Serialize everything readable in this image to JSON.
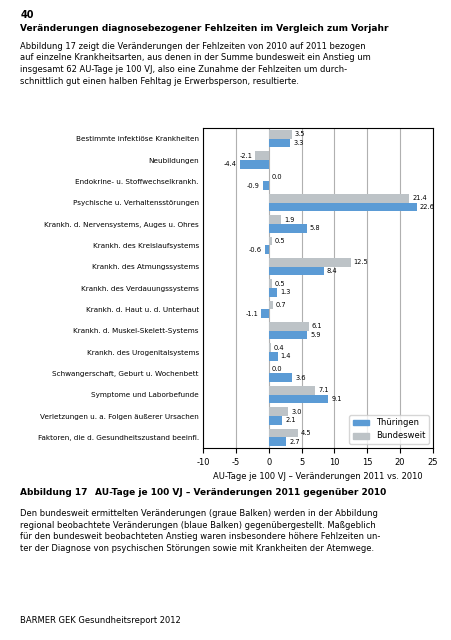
{
  "chart_data": {
    "type": "bar",
    "orientation": "horizontal",
    "title": "AU-Tage je 100 VJ – Veränderungen 2011 gegenüber 2010",
    "annotations": [
      "40",
      "Veränderungen diagnosebezogener Fehlzeiten im Vergleich zum Vorjahr",
      "Abbildung 17 zeigt die Veränderungen der Fehlzeiten von 2010 auf 2011 bezogen\nauf einzelne Krankheitsarten, aus denen in der Summe bundesweit ein Anstieg um\ninsgesamt 62 AU-Tage je 100 VJ, also eine Zunahme der Fehlzeiten um durch-\nschnittlich gut einen halben Fehltag je Erwerbsperson, resultierte.",
      "Abbildung 17",
      "Den bundesweit ermittelten Veränderungen (graue Balken) werden in der Abbildung\nregional beobachtete Veränderungen (blaue Balken) gegenübergestellt. Maßgeblich\nfür den bundesweit beobachteten Anstieg waren insbesondere höhere Fehlzeiten un-\nter der Diagnose von psychischen Störungen sowie mit Krankheiten der Atemwege.",
      "BARMER GEK Gesundheitsreport 2012"
    ],
    "xlabel": "AU-Tage je 100 VJ – Veränderungen 2011 vs. 2010",
    "categories": [
      "Bestimmte infektiöse Krankheiten",
      "Neubildungen",
      "Endokrine- u. Stoffwechselkrankh.",
      "Psychische u. Verhaltensstörungen",
      "Krankh. d. Nervensystems, Auges u. Ohres",
      "Krankh. des Kreislaufsystems",
      "Krankh. des Atmungssystems",
      "Krankh. des Verdauungssystems",
      "Krankh. d. Haut u. d. Unterhaut",
      "Krankh. d. Muskel-Skelett-Systems",
      "Krankh. des Urogenitalsystems",
      "Schwangerschaft, Geburt u. Wochenbett",
      "Symptome und Laborbefunde",
      "Verletzungen u. a. Folgen äußerer Ursachen",
      "Faktoren, die d. Gesundheitszustand beeinfl."
    ],
    "series": [
      {
        "name": "Thüringen",
        "color": "#5b9bd5",
        "values": [
          3.3,
          -4.4,
          -0.9,
          22.6,
          5.8,
          -0.6,
          8.4,
          1.3,
          -1.1,
          5.9,
          1.4,
          3.6,
          9.1,
          2.1,
          2.7
        ]
      },
      {
        "name": "Bundesweit",
        "color": "#bdc3c7",
        "values": [
          3.5,
          -2.1,
          0.0,
          21.4,
          1.9,
          0.5,
          12.5,
          0.5,
          0.7,
          6.1,
          0.4,
          0.0,
          7.1,
          3.0,
          4.5
        ]
      }
    ],
    "xlim": [
      -10,
      25
    ],
    "xticks": [
      -10,
      -5,
      0,
      5,
      10,
      15,
      20,
      25
    ],
    "grid": true,
    "legend": "lower right",
    "data_labels": true
  }
}
